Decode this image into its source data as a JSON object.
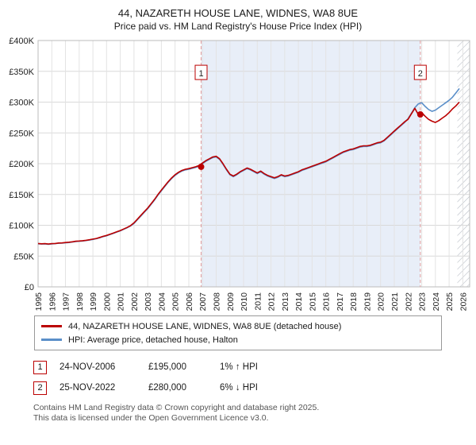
{
  "title": "44, NAZARETH HOUSE LANE, WIDNES, WA8 8UE",
  "subtitle": "Price paid vs. HM Land Registry's House Price Index (HPI)",
  "chart_data": {
    "type": "line",
    "title": "44, NAZARETH HOUSE LANE, WIDNES, WA8 8UE",
    "subtitle": "Price paid vs. HM Land Registry's House Price Index (HPI)",
    "xlim": [
      1995,
      2026.5
    ],
    "ylim": [
      0,
      400
    ],
    "x_start": 1995,
    "x_step": 0.25,
    "x_ticks": [
      1995,
      1996,
      1997,
      1998,
      1999,
      2000,
      2001,
      2002,
      2003,
      2004,
      2005,
      2006,
      2007,
      2008,
      2009,
      2010,
      2011,
      2012,
      2013,
      2014,
      2015,
      2016,
      2017,
      2018,
      2019,
      2020,
      2021,
      2022,
      2023,
      2024,
      2025,
      2026
    ],
    "y_ticks": [
      {
        "v": 0,
        "label": "£0"
      },
      {
        "v": 50,
        "label": "£50K"
      },
      {
        "v": 100,
        "label": "£100K"
      },
      {
        "v": 150,
        "label": "£150K"
      },
      {
        "v": 200,
        "label": "£200K"
      },
      {
        "v": 250,
        "label": "£250K"
      },
      {
        "v": 300,
        "label": "£300K"
      },
      {
        "v": 350,
        "label": "£350K"
      },
      {
        "v": 400,
        "label": "£400K"
      }
    ],
    "shaded_region": [
      2006.9,
      2022.9
    ],
    "shaded_color": "#e8eef8",
    "hatched_region": [
      2025.6,
      2026.5
    ],
    "marker_label_y": 347,
    "grid": true,
    "legend_position": "bottom",
    "series": [
      {
        "name": "44, NAZARETH HOUSE LANE, WIDNES, WA8 8UE (detached house)",
        "color": "#bb0000",
        "values": [
          70.5,
          70,
          70.2,
          69.6,
          70.2,
          70.5,
          71.2,
          71.4,
          72,
          72.5,
          73.2,
          74,
          74.5,
          75,
          75.6,
          76.5,
          77.5,
          78.6,
          80.2,
          82,
          83.5,
          85.5,
          87.5,
          89.5,
          91.5,
          94,
          96.5,
          99.5,
          104,
          110,
          116,
          122,
          128,
          135,
          142,
          150,
          157,
          164,
          171,
          177,
          182,
          186,
          189,
          191,
          192,
          193.5,
          195,
          197,
          201,
          205,
          208,
          211,
          212,
          208,
          200,
          191,
          183,
          180,
          183,
          187,
          190,
          193,
          191,
          188,
          185,
          188,
          184,
          181,
          179,
          177,
          179,
          182,
          180,
          181,
          183,
          185,
          187,
          190,
          192,
          194,
          196,
          198,
          200,
          202,
          204,
          207,
          210,
          213,
          216,
          219,
          221,
          223,
          224,
          226,
          228,
          229,
          229,
          230,
          232,
          234,
          235,
          238,
          243,
          248,
          253,
          258,
          263,
          268,
          272,
          281,
          290,
          280,
          283,
          277,
          272,
          269,
          267,
          270,
          274,
          278,
          283,
          289,
          294,
          300
        ]
      },
      {
        "name": "HPI: Average price, detached house, Halton",
        "color": "#5b8fc9",
        "values": [
          70,
          69.5,
          69.8,
          69.2,
          69.8,
          70.2,
          70.8,
          71,
          71.5,
          72,
          72.8,
          73.5,
          74,
          74.5,
          75.2,
          76,
          77,
          78.2,
          79.8,
          81.5,
          83,
          85,
          87,
          89,
          91,
          93.5,
          96,
          99,
          103,
          109,
          115,
          121,
          127,
          134,
          141,
          149,
          156,
          163,
          170,
          176,
          181,
          185,
          188,
          190,
          191,
          192.5,
          194,
          196,
          200,
          204,
          207,
          210,
          211,
          207,
          199,
          190,
          182,
          179,
          182,
          186,
          189,
          192,
          190,
          187,
          184,
          187,
          183,
          180,
          178,
          176,
          178,
          181,
          179,
          180,
          182,
          184,
          186,
          189,
          191,
          193,
          195,
          197,
          199,
          201,
          203,
          206,
          209,
          212,
          215,
          218,
          220,
          222,
          223,
          225,
          227,
          228,
          228,
          229,
          231,
          233,
          234,
          237,
          242,
          247,
          252,
          257,
          262,
          267,
          273,
          282,
          291,
          297,
          299,
          293,
          288,
          285,
          287,
          291,
          295,
          299,
          303,
          308,
          315,
          322
        ]
      }
    ],
    "markers": [
      {
        "label": "1",
        "x": 2006.9,
        "y": 195
      },
      {
        "label": "2",
        "x": 2022.9,
        "y": 280
      }
    ]
  },
  "legend": {
    "items": [
      {
        "label": "44, NAZARETH HOUSE LANE, WIDNES, WA8 8UE (detached house)",
        "color": "#bb0000"
      },
      {
        "label": "HPI: Average price, detached house, Halton",
        "color": "#5b8fc9"
      }
    ]
  },
  "transactions": [
    {
      "num": "1",
      "date": "24-NOV-2006",
      "price": "£195,000",
      "hpi": "1% ↑ HPI"
    },
    {
      "num": "2",
      "date": "25-NOV-2022",
      "price": "£280,000",
      "hpi": "6% ↓ HPI"
    }
  ],
  "footer": {
    "line1": "Contains HM Land Registry data © Crown copyright and database right 2025.",
    "line2": "This data is licensed under the Open Government Licence v3.0."
  }
}
